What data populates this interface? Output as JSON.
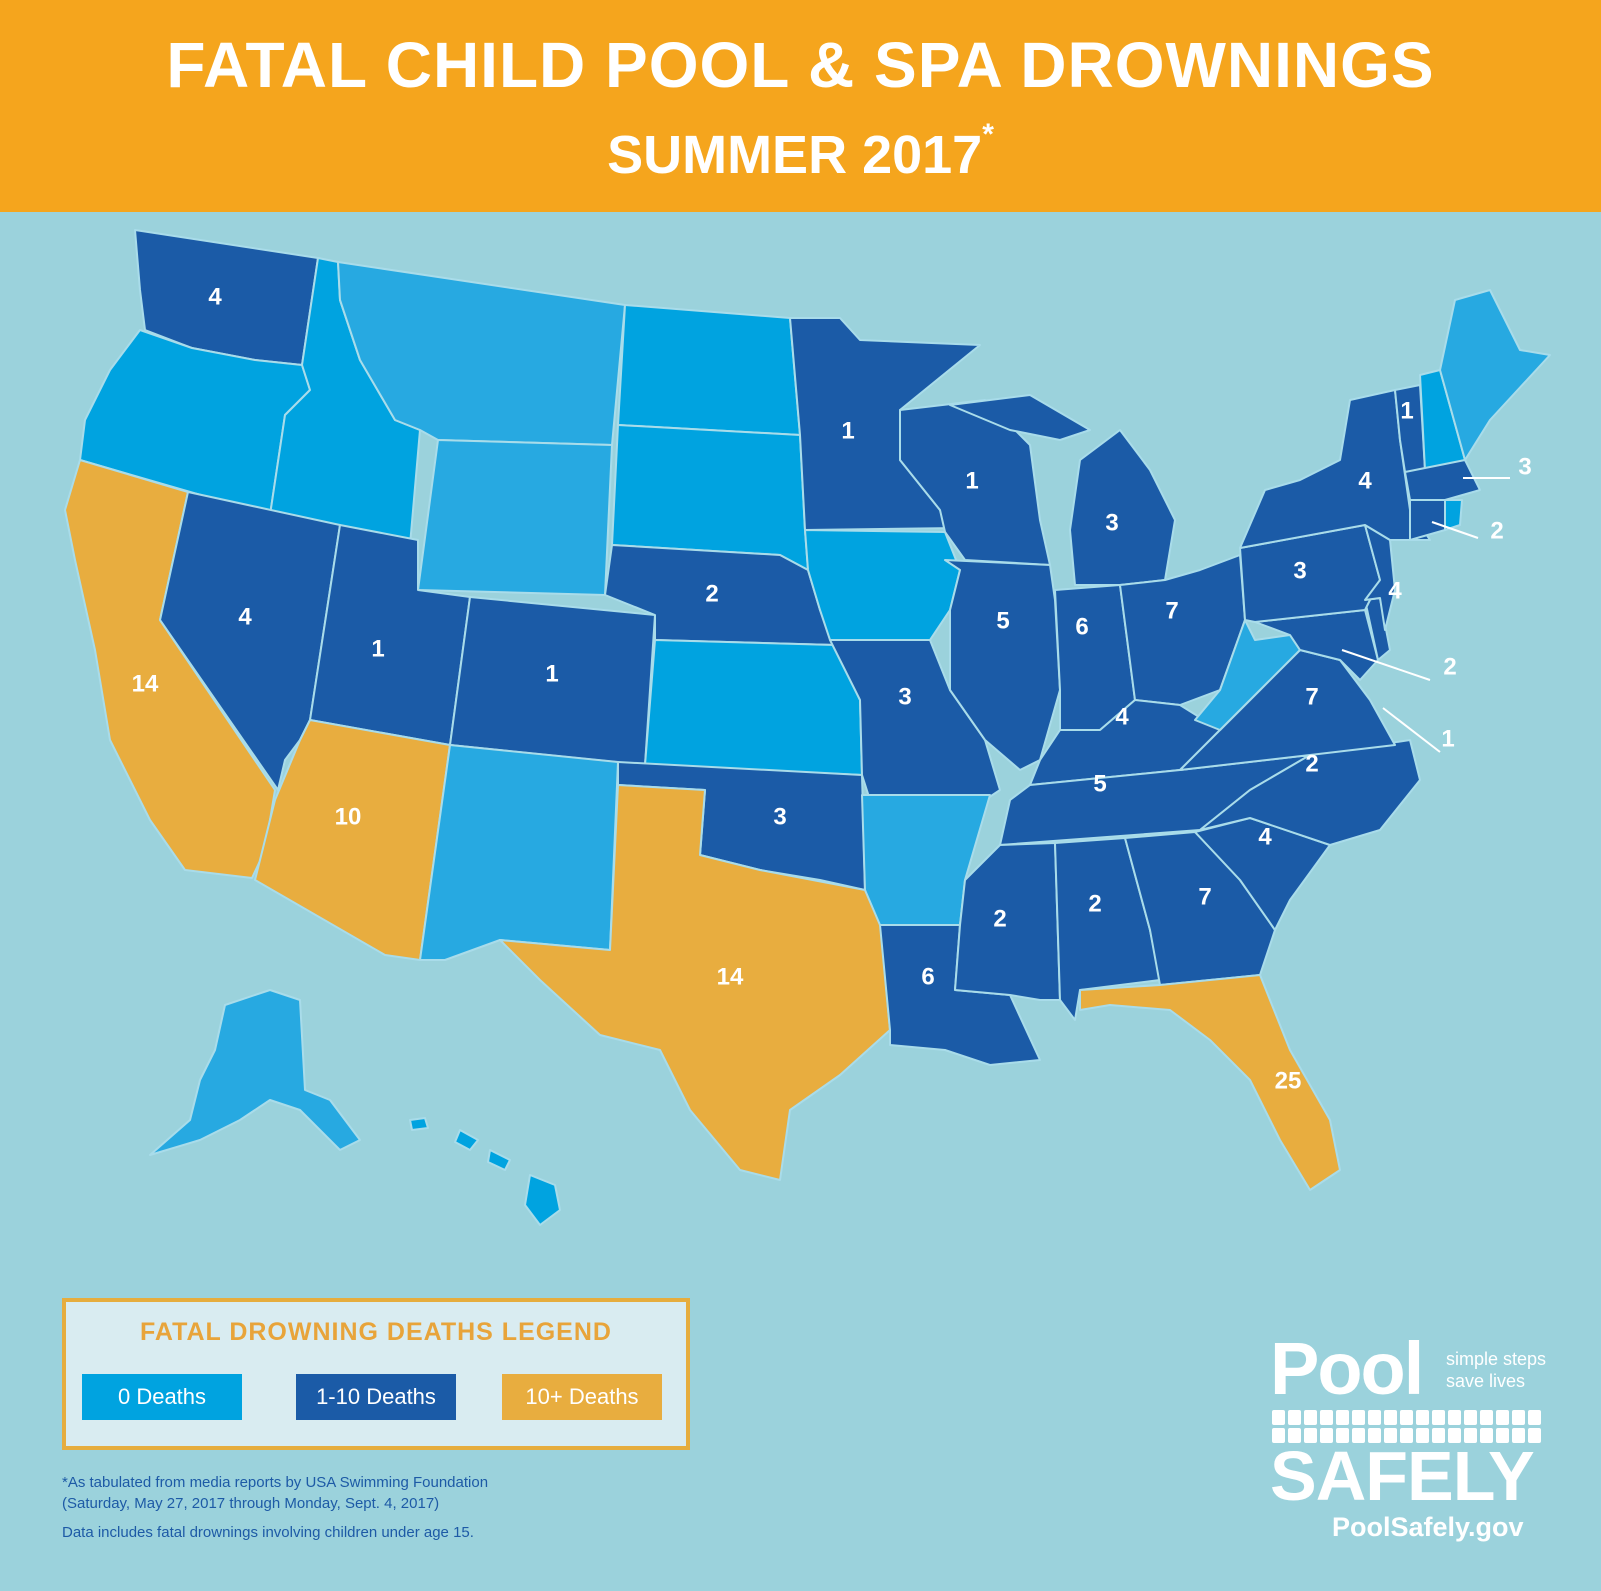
{
  "header": {
    "title": "FATAL CHILD POOL & SPA DROWNINGS",
    "subtitle": "SUMMER 2017",
    "asterisk": "*"
  },
  "colors": {
    "zero": "#00a3e0",
    "zero_alt": "#27a9e1",
    "low": "#1b5ba7",
    "high": "#e8ad3f",
    "background": "#9bd2dc",
    "border": "#a9dcea"
  },
  "map_data": {
    "states": [
      {
        "code": "WA",
        "value": "4",
        "category": "1-10"
      },
      {
        "code": "OR",
        "value": "",
        "category": "0"
      },
      {
        "code": "CA",
        "value": "14",
        "category": "10+"
      },
      {
        "code": "ID",
        "value": "",
        "category": "0"
      },
      {
        "code": "NV",
        "value": "4",
        "category": "1-10"
      },
      {
        "code": "MT",
        "value": "",
        "category": "0"
      },
      {
        "code": "WY",
        "value": "",
        "category": "0"
      },
      {
        "code": "UT",
        "value": "1",
        "category": "1-10"
      },
      {
        "code": "AZ",
        "value": "10",
        "category": "10+"
      },
      {
        "code": "CO",
        "value": "1",
        "category": "1-10"
      },
      {
        "code": "NM",
        "value": "",
        "category": "0"
      },
      {
        "code": "ND",
        "value": "",
        "category": "0"
      },
      {
        "code": "SD",
        "value": "",
        "category": "0"
      },
      {
        "code": "NE",
        "value": "2",
        "category": "1-10"
      },
      {
        "code": "KS",
        "value": "",
        "category": "0"
      },
      {
        "code": "OK",
        "value": "3",
        "category": "1-10"
      },
      {
        "code": "TX",
        "value": "14",
        "category": "10+"
      },
      {
        "code": "MN",
        "value": "1",
        "category": "1-10"
      },
      {
        "code": "IA",
        "value": "",
        "category": "0"
      },
      {
        "code": "MO",
        "value": "3",
        "category": "1-10"
      },
      {
        "code": "AR",
        "value": "",
        "category": "0"
      },
      {
        "code": "LA",
        "value": "6",
        "category": "1-10"
      },
      {
        "code": "WI",
        "value": "1",
        "category": "1-10"
      },
      {
        "code": "IL",
        "value": "5",
        "category": "1-10"
      },
      {
        "code": "MI",
        "value": "3",
        "category": "1-10"
      },
      {
        "code": "IN",
        "value": "6",
        "category": "1-10"
      },
      {
        "code": "OH",
        "value": "7",
        "category": "1-10"
      },
      {
        "code": "KY",
        "value": "4",
        "category": "1-10"
      },
      {
        "code": "TN",
        "value": "5",
        "category": "1-10"
      },
      {
        "code": "MS",
        "value": "2",
        "category": "1-10"
      },
      {
        "code": "AL",
        "value": "2",
        "category": "1-10"
      },
      {
        "code": "GA",
        "value": "7",
        "category": "1-10"
      },
      {
        "code": "FL",
        "value": "25",
        "category": "10+"
      },
      {
        "code": "SC",
        "value": "4",
        "category": "1-10"
      },
      {
        "code": "NC",
        "value": "2",
        "category": "1-10"
      },
      {
        "code": "VA",
        "value": "7",
        "category": "1-10"
      },
      {
        "code": "WV",
        "value": "",
        "category": "0"
      },
      {
        "code": "MD",
        "value": "2",
        "category": "1-10"
      },
      {
        "code": "DE",
        "value": "1",
        "category": "1-10"
      },
      {
        "code": "PA",
        "value": "3",
        "category": "1-10"
      },
      {
        "code": "NJ",
        "value": "4",
        "category": "1-10"
      },
      {
        "code": "NY",
        "value": "4",
        "category": "1-10"
      },
      {
        "code": "CT",
        "value": "2",
        "category": "1-10"
      },
      {
        "code": "RI",
        "value": "",
        "category": "0"
      },
      {
        "code": "MA",
        "value": "3",
        "category": "1-10"
      },
      {
        "code": "VT",
        "value": "1",
        "category": "1-10"
      },
      {
        "code": "NH",
        "value": "",
        "category": "0"
      },
      {
        "code": "ME",
        "value": "",
        "category": "0"
      },
      {
        "code": "AK",
        "value": "",
        "category": "0"
      },
      {
        "code": "HI",
        "value": "",
        "category": "0"
      }
    ]
  },
  "legend": {
    "title": "FATAL DROWNING DEATHS LEGEND",
    "items": [
      {
        "label": "0 Deaths",
        "color": "#00a3e0"
      },
      {
        "label": "1-10 Deaths",
        "color": "#1b5ba7"
      },
      {
        "label": "10+ Deaths",
        "color": "#e8ad3f"
      }
    ]
  },
  "footnote": {
    "line1": "*As tabulated from media reports by USA Swimming Foundation",
    "line2": "(Saturday, May 27, 2017 through Monday, Sept. 4, 2017)",
    "line3": "Data includes fatal drownings involving children under age 15."
  },
  "logo": {
    "word1": "Pool",
    "tagline1": "simple steps",
    "tagline2": "save lives",
    "word2": "SAFELY",
    "url": "PoolSafely.gov"
  }
}
